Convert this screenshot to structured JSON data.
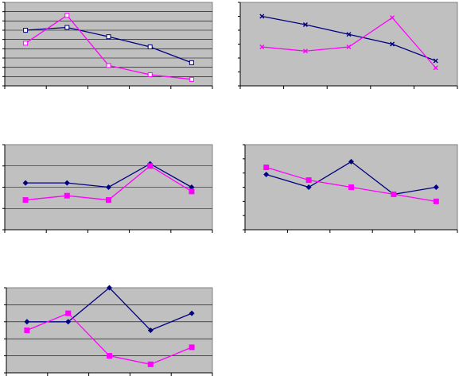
{
  "chart_data": [
    {
      "type": "line",
      "x": [
        1,
        2,
        3,
        4,
        5
      ],
      "ylim": [
        0,
        9
      ],
      "grid": "horizontal",
      "series": [
        {
          "values": [
            6.0,
            6.3,
            5.3,
            4.2,
            2.5
          ],
          "color": "#000080",
          "marker": "square-open"
        },
        {
          "values": [
            4.6,
            7.6,
            2.2,
            1.2,
            0.7
          ],
          "color": "#ff00ff",
          "marker": "square-open"
        }
      ]
    },
    {
      "type": "line",
      "x": [
        1,
        2,
        3,
        4,
        5
      ],
      "ylim": [
        0,
        6
      ],
      "grid": "none",
      "series": [
        {
          "values": [
            5.0,
            4.4,
            3.7,
            3.0,
            1.8
          ],
          "color": "#000080",
          "marker": "x"
        },
        {
          "values": [
            2.8,
            2.5,
            2.8,
            4.9,
            1.3
          ],
          "color": "#ff00ff",
          "marker": "x"
        }
      ]
    },
    {
      "type": "line",
      "x": [
        1,
        2,
        3,
        4,
        5
      ],
      "ylim": [
        0,
        4
      ],
      "grid": "horizontal",
      "series": [
        {
          "values": [
            2.2,
            2.2,
            2.0,
            3.1,
            2.0
          ],
          "color": "#000080",
          "marker": "diamond"
        },
        {
          "values": [
            1.4,
            1.6,
            1.4,
            3.0,
            1.8
          ],
          "color": "#ff00ff",
          "marker": "square"
        }
      ]
    },
    {
      "type": "line",
      "x": [
        1,
        2,
        3,
        4,
        5
      ],
      "ylim": [
        0,
        6
      ],
      "grid": "none",
      "series": [
        {
          "values": [
            3.9,
            3.0,
            4.8,
            2.5,
            3.0
          ],
          "color": "#000080",
          "marker": "diamond"
        },
        {
          "values": [
            4.4,
            3.5,
            3.0,
            2.5,
            2.0
          ],
          "color": "#ff00ff",
          "marker": "square"
        }
      ]
    },
    {
      "type": "line",
      "x": [
        1,
        2,
        3,
        4,
        5
      ],
      "ylim": [
        0,
        5
      ],
      "grid": "horizontal",
      "series": [
        {
          "values": [
            3.0,
            3.0,
            5.0,
            2.5,
            3.5
          ],
          "color": "#000080",
          "marker": "diamond"
        },
        {
          "values": [
            2.5,
            3.5,
            1.0,
            0.5,
            1.5
          ],
          "color": "#ff00ff",
          "marker": "square"
        }
      ]
    }
  ]
}
